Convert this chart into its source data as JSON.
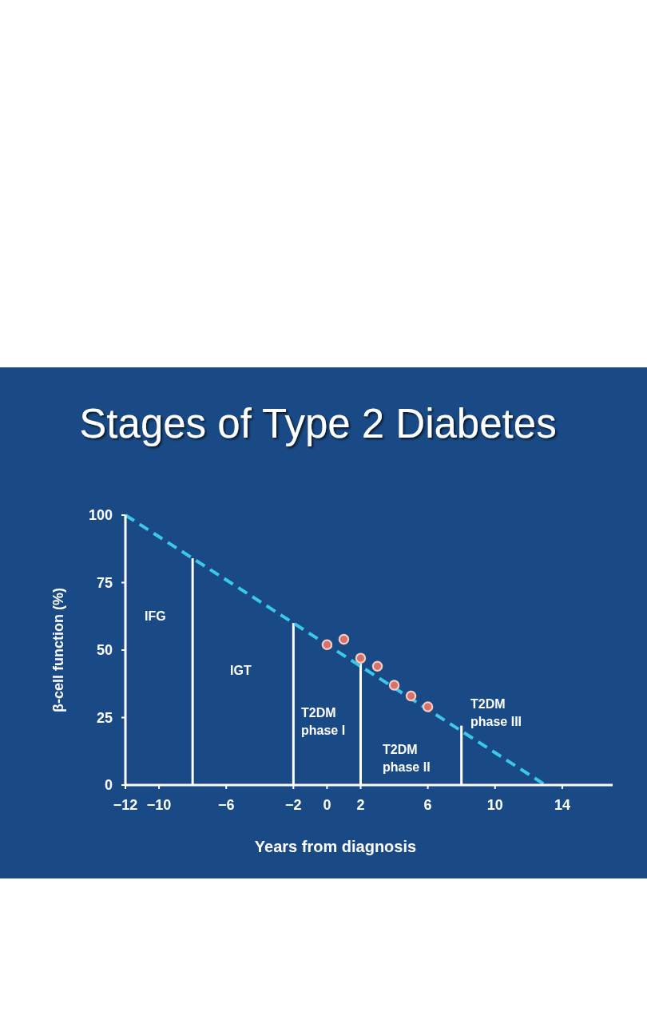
{
  "chart_data": {
    "type": "line",
    "title": "Stages of Type 2 Diabetes",
    "xlabel": "Years from diagnosis",
    "ylabel": "β-cell function (%)",
    "xlim": [
      -12,
      17
    ],
    "xticks": [
      -12,
      -10,
      -6,
      -2,
      0,
      2,
      6,
      10,
      14
    ],
    "ylim": [
      0,
      100
    ],
    "yticks": [
      0,
      25,
      50,
      75,
      100
    ],
    "series": [
      {
        "type": "bar",
        "x": [
          -8,
          -2,
          2,
          8
        ],
        "values": [
          84,
          60,
          45,
          22
        ],
        "color": "#ffffff"
      },
      {
        "x": [
          -12,
          13
        ],
        "values": [
          100,
          0
        ],
        "color": "#3cc8ea",
        "line_style": "dashed"
      },
      {
        "type": "scatter",
        "x": [
          0,
          1,
          2,
          3,
          4,
          5,
          6
        ],
        "values": [
          52,
          54,
          47,
          44,
          37,
          33,
          29
        ],
        "color": "#d9706e",
        "marker": "circle"
      }
    ],
    "annotations": [
      "IFG",
      "IGT",
      "T2DM\nphase I",
      "T2DM\nphase II",
      "T2DM\nphase III"
    ]
  }
}
